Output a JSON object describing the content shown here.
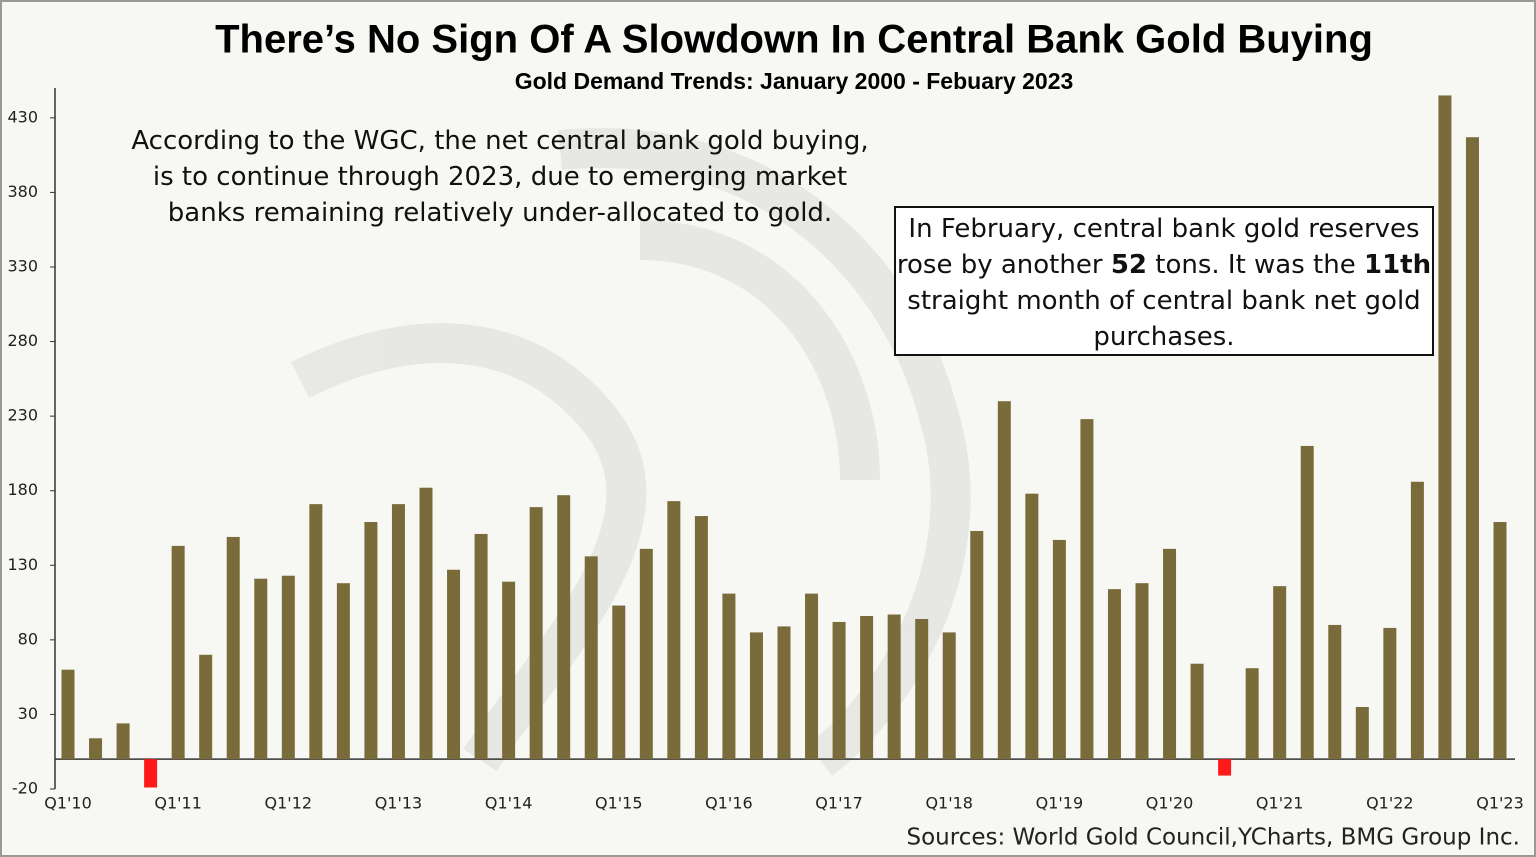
{
  "chart_data": {
    "type": "bar",
    "title": "There’s No Sign Of A Slowdown In Central Bank Gold Buying",
    "subtitle": "Gold Demand Trends: January 2000 - Febuary 2023",
    "source": "Sources: World Gold Council,YCharts, BMG Group Inc.",
    "annotations": [
      {
        "boxed": false,
        "lines": [
          [
            {
              "text": "According to the WGC, the net central bank gold buying,"
            }
          ],
          [
            {
              "text": "is to continue through 2023, due to emerging market"
            }
          ],
          [
            {
              "text": "banks remaining relatively under-allocated to gold."
            }
          ]
        ]
      },
      {
        "boxed": true,
        "lines": [
          [
            {
              "text": "In February, central bank gold reserves"
            }
          ],
          [
            {
              "text": "rose by another "
            },
            {
              "text": "52",
              "bold": true
            },
            {
              "text": " tons. It was the "
            },
            {
              "text": "11th",
              "bold": true
            }
          ],
          [
            {
              "text": "straight month of central bank net gold"
            }
          ],
          [
            {
              "text": "purchases."
            }
          ]
        ]
      }
    ],
    "categories": [
      "Q1'10",
      null,
      null,
      null,
      "Q1'11",
      null,
      null,
      null,
      "Q1'12",
      null,
      null,
      null,
      "Q1'13",
      null,
      null,
      null,
      "Q1'14",
      null,
      null,
      null,
      "Q1'15",
      null,
      null,
      null,
      "Q1'16",
      null,
      null,
      null,
      "Q1'17",
      null,
      null,
      null,
      "Q1'18",
      null,
      null,
      null,
      "Q1'19",
      null,
      null,
      null,
      "Q1'20",
      null,
      null,
      null,
      "Q1'21",
      null,
      null,
      null,
      "Q1'22",
      null,
      null,
      null,
      "Q1'23"
    ],
    "values": [
      60,
      14,
      24,
      -19,
      143,
      70,
      149,
      121,
      123,
      171,
      118,
      159,
      171,
      182,
      127,
      151,
      119,
      169,
      177,
      136,
      103,
      141,
      173,
      163,
      111,
      85,
      89,
      111,
      92,
      96,
      97,
      94,
      85,
      153,
      240,
      178,
      147,
      228,
      114,
      118,
      141,
      64,
      -11,
      61,
      116,
      210,
      90,
      35,
      88,
      186,
      445,
      417,
      159
    ],
    "color": "#7a6c3a",
    "negative_color": "#ff1a1a",
    "ylim": [
      -20,
      450
    ],
    "yticks": [
      -20,
      30,
      80,
      130,
      180,
      230,
      280,
      330,
      380,
      430
    ],
    "grid": false
  }
}
